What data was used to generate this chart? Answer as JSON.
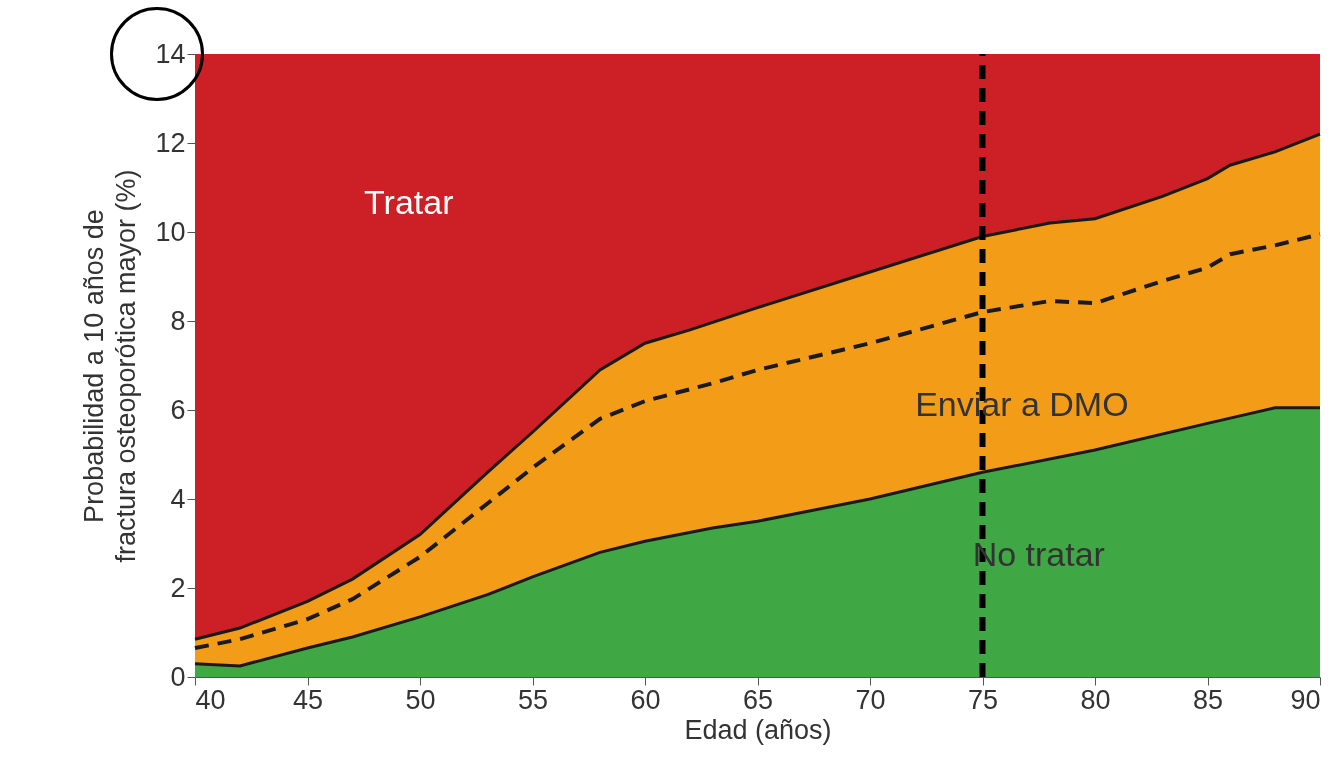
{
  "chart_data": {
    "type": "area",
    "xlabel": "Edad (años)",
    "ylabel": "Probabilidad a 10 años de fractura osteoporótica mayor (%)",
    "xlim": [
      40,
      90
    ],
    "xticks": [
      40,
      45,
      50,
      55,
      60,
      65,
      70,
      75,
      80,
      85,
      90
    ],
    "ylim": [
      0,
      14
    ],
    "yticks": [
      0,
      2,
      4,
      6,
      8,
      10,
      12,
      14
    ],
    "grid": false,
    "bands": [
      {
        "axis": "y",
        "from": 0,
        "to": 14,
        "color": "#cc1f26"
      }
    ],
    "series": [
      {
        "color": "#f39c17",
        "x": [
          40,
          42,
          45,
          47,
          50,
          53,
          55,
          58,
          60,
          62,
          65,
          70,
          75,
          78,
          80,
          83,
          85,
          86,
          88,
          90
        ],
        "values": [
          0.85,
          1.1,
          1.7,
          2.2,
          3.2,
          4.6,
          5.5,
          6.9,
          7.5,
          7.8,
          8.3,
          9.1,
          9.9,
          10.2,
          10.3,
          10.8,
          11.2,
          11.5,
          11.8,
          12.2
        ]
      },
      {
        "color": "#3fa845",
        "x": [
          40,
          42,
          45,
          47,
          50,
          53,
          55,
          58,
          60,
          63,
          65,
          70,
          75,
          80,
          85,
          88,
          90
        ],
        "values": [
          0.3,
          0.25,
          0.65,
          0.9,
          1.35,
          1.85,
          2.25,
          2.8,
          3.05,
          3.35,
          3.5,
          4.0,
          4.6,
          5.1,
          5.7,
          6.05,
          6.05
        ]
      },
      {
        "type": "line",
        "line_style": "dashed",
        "color": "#1a1a1a",
        "x": [
          40,
          42,
          45,
          47,
          50,
          53,
          55,
          58,
          60,
          63,
          65,
          70,
          75,
          78,
          80,
          83,
          85,
          86,
          88,
          90
        ],
        "values": [
          0.65,
          0.85,
          1.3,
          1.75,
          2.7,
          3.9,
          4.7,
          5.8,
          6.2,
          6.6,
          6.9,
          7.5,
          8.2,
          8.45,
          8.4,
          8.9,
          9.2,
          9.5,
          9.7,
          9.95
        ]
      }
    ],
    "ref_lines": [
      {
        "axis": "x",
        "value": 75,
        "color": "#000000",
        "line_style": "dashed"
      }
    ],
    "annotations": [
      "Tratar",
      "Enviar a DMO",
      "No tratar"
    ]
  }
}
